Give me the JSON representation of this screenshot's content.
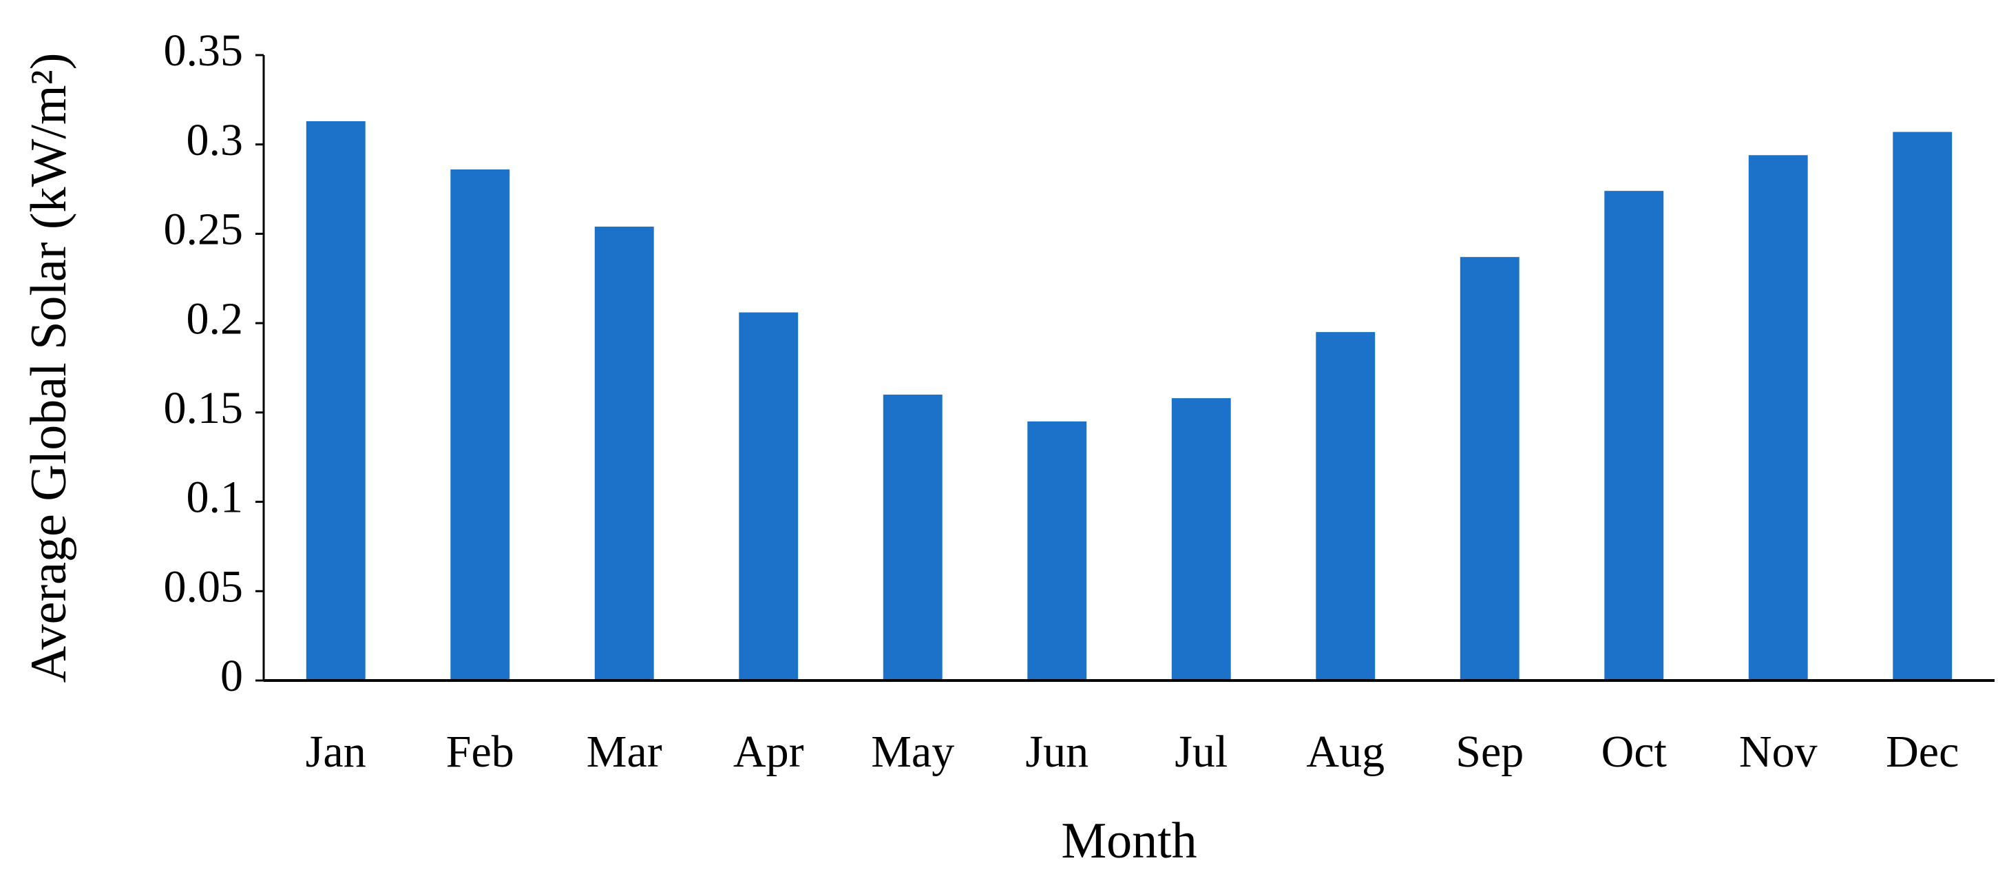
{
  "chart_data": {
    "type": "bar",
    "categories": [
      "Jan",
      "Feb",
      "Mar",
      "Apr",
      "May",
      "Jun",
      "Jul",
      "Aug",
      "Sep",
      "Oct",
      "Nov",
      "Dec"
    ],
    "values": [
      0.313,
      0.286,
      0.254,
      0.206,
      0.16,
      0.145,
      0.158,
      0.195,
      0.237,
      0.274,
      0.294,
      0.307
    ],
    "color": "#1c72c8",
    "x_label": "Month",
    "y_label": "Average Global Solar (kW/m²)",
    "ylim": [
      0,
      0.35
    ],
    "yticks": [
      0,
      0.05,
      0.1,
      0.15,
      0.2,
      0.25,
      0.3,
      0.35
    ],
    "grid": false
  }
}
